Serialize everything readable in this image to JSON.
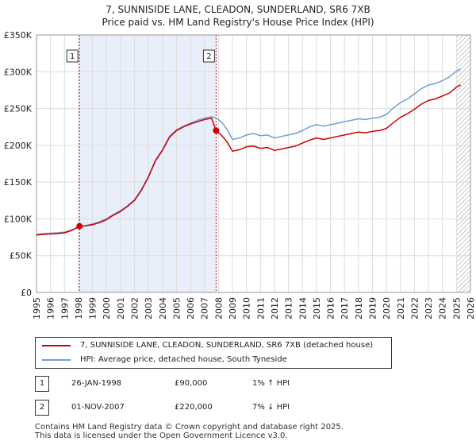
{
  "header": {
    "title": "7, SUNNISIDE LANE, CLEADON, SUNDERLAND, SR6 7XB",
    "subtitle": "Price paid vs. HM Land Registry's House Price Index (HPI)"
  },
  "legend": {
    "property_label": "7, SUNNISIDE LANE, CLEADON, SUNDERLAND, SR6 7XB (detached house)",
    "hpi_label": "HPI: Average price, detached house, South Tyneside"
  },
  "sales": [
    {
      "badge": "1",
      "date": "26-JAN-1998",
      "price": "£90,000",
      "hpi": "1% ↑ HPI"
    },
    {
      "badge": "2",
      "date": "01-NOV-2007",
      "price": "£220,000",
      "hpi": "7% ↓ HPI"
    }
  ],
  "footer": {
    "line1": "Contains HM Land Registry data © Crown copyright and database right 2025.",
    "line2": "This data is licensed under the Open Government Licence v3.0."
  },
  "colors": {
    "property": "#cc0000",
    "hpi": "#6f9fd8",
    "shade": "#e8eefa",
    "grid": "#dddddd",
    "marker_line": "#cc0000"
  },
  "chart_data": {
    "type": "line",
    "xlim": [
      1995,
      2026
    ],
    "ylim": [
      0,
      350000
    ],
    "x_ticks": [
      "1995",
      "1996",
      "1997",
      "1998",
      "1999",
      "2000",
      "2001",
      "2002",
      "2003",
      "2004",
      "2005",
      "2006",
      "2007",
      "2008",
      "2009",
      "2010",
      "2011",
      "2012",
      "2013",
      "2014",
      "2015",
      "2016",
      "2017",
      "2018",
      "2019",
      "2020",
      "2021",
      "2022",
      "2023",
      "2024",
      "2025",
      "2026"
    ],
    "y_ticks": [
      {
        "value": 0,
        "label": "£0"
      },
      {
        "value": 50000,
        "label": "£50K"
      },
      {
        "value": 100000,
        "label": "£100K"
      },
      {
        "value": 150000,
        "label": "£150K"
      },
      {
        "value": 200000,
        "label": "£200K"
      },
      {
        "value": 250000,
        "label": "£250K"
      },
      {
        "value": 300000,
        "label": "£300K"
      },
      {
        "value": 350000,
        "label": "£350K"
      }
    ],
    "shaded_region": [
      1998.07,
      2007.83
    ],
    "hatched_from": 2025.0,
    "annotations": [
      {
        "label": "1",
        "x": 1998.07,
        "y": 90000
      },
      {
        "label": "2",
        "x": 2007.83,
        "y": 220000
      }
    ],
    "series": [
      {
        "name": "HPI",
        "x": [
          1995.0,
          1995.5,
          1996.0,
          1996.5,
          1997.0,
          1997.5,
          1998.0,
          1998.5,
          1999.0,
          1999.5,
          2000.0,
          2000.5,
          2001.0,
          2001.5,
          2002.0,
          2002.5,
          2003.0,
          2003.5,
          2004.0,
          2004.5,
          2005.0,
          2005.5,
          2006.0,
          2006.5,
          2007.0,
          2007.5,
          2007.83,
          2008.2,
          2008.6,
          2009.0,
          2009.5,
          2010.0,
          2010.5,
          2011.0,
          2011.5,
          2012.0,
          2012.5,
          2013.0,
          2013.5,
          2014.0,
          2014.5,
          2015.0,
          2015.5,
          2016.0,
          2016.5,
          2017.0,
          2017.5,
          2018.0,
          2018.5,
          2019.0,
          2019.5,
          2020.0,
          2020.5,
          2021.0,
          2021.5,
          2022.0,
          2022.5,
          2023.0,
          2023.5,
          2024.0,
          2024.5,
          2025.0,
          2025.3
        ],
        "y": [
          79000,
          80000,
          80500,
          81000,
          82000,
          85000,
          88500,
          91000,
          93000,
          96000,
          100000,
          106000,
          111000,
          118000,
          126000,
          140000,
          158000,
          180000,
          194000,
          212000,
          221000,
          226000,
          230000,
          234000,
          237000,
          239000,
          237000,
          232000,
          222000,
          208000,
          210000,
          214000,
          216000,
          213000,
          214000,
          210000,
          212000,
          214000,
          216000,
          220000,
          225000,
          228000,
          226000,
          228000,
          230000,
          232000,
          234000,
          236000,
          235000,
          237000,
          238000,
          242000,
          251000,
          258000,
          263000,
          270000,
          277000,
          282000,
          284000,
          288000,
          293000,
          301000,
          304000
        ]
      },
      {
        "name": "Property",
        "x": [
          1995.0,
          1995.5,
          1996.0,
          1996.5,
          1997.0,
          1997.5,
          1998.07,
          1998.5,
          1999.0,
          1999.5,
          2000.0,
          2000.5,
          2001.0,
          2001.5,
          2002.0,
          2002.5,
          2003.0,
          2003.5,
          2004.0,
          2004.5,
          2005.0,
          2005.5,
          2006.0,
          2006.5,
          2007.0,
          2007.5,
          2007.83,
          2008.2,
          2008.6,
          2009.0,
          2009.5,
          2010.0,
          2010.5,
          2011.0,
          2011.5,
          2012.0,
          2012.5,
          2013.0,
          2013.5,
          2014.0,
          2014.5,
          2015.0,
          2015.5,
          2016.0,
          2016.5,
          2017.0,
          2017.5,
          2018.0,
          2018.5,
          2019.0,
          2019.5,
          2020.0,
          2020.5,
          2021.0,
          2021.5,
          2022.0,
          2022.5,
          2023.0,
          2023.5,
          2024.0,
          2024.5,
          2025.0,
          2025.3
        ],
        "y": [
          78000,
          79000,
          79500,
          80000,
          81000,
          84000,
          90000,
          90500,
          92000,
          95000,
          99000,
          105000,
          110000,
          117000,
          125000,
          139000,
          157000,
          179000,
          193000,
          211000,
          220000,
          225000,
          229000,
          232000,
          235000,
          237000,
          220000,
          214000,
          205000,
          192000,
          194000,
          198000,
          199000,
          196000,
          197000,
          193000,
          195000,
          197000,
          199000,
          203000,
          207000,
          210000,
          208000,
          210000,
          212000,
          214000,
          216000,
          218000,
          217000,
          219000,
          220000,
          223000,
          231000,
          238000,
          243000,
          249000,
          256000,
          261000,
          263000,
          267000,
          271000,
          279000,
          282000
        ]
      }
    ]
  }
}
